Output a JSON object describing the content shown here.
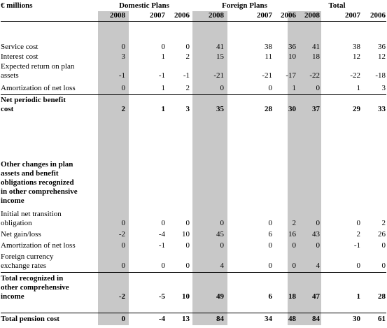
{
  "unit_label": "€ millions",
  "groups": [
    "Domestic Plans",
    "Foreign Plans",
    "Total"
  ],
  "years": [
    "2008",
    "2007",
    "2006",
    "2008",
    "2007",
    "2006",
    "2008",
    "2007",
    "2006"
  ],
  "section1": {
    "rows": [
      {
        "label": [
          "Service cost"
        ],
        "values": [
          "0",
          "0",
          "0",
          "41",
          "38",
          "36",
          "41",
          "38",
          "36"
        ]
      },
      {
        "label": [
          "Interest cost"
        ],
        "values": [
          "3",
          "1",
          "2",
          "15",
          "11",
          "10",
          "18",
          "12",
          "12"
        ]
      },
      {
        "label": [
          "Expected return on plan",
          "assets"
        ],
        "values": [
          "-1",
          "-1",
          "-1",
          "-21",
          "-21",
          "-17",
          "-22",
          "-22",
          "-18"
        ]
      },
      {
        "label": [
          "Amortization of net loss"
        ],
        "values": [
          "0",
          "1",
          "2",
          "0",
          "0",
          "1",
          "0",
          "1",
          "3"
        ]
      }
    ],
    "total": {
      "label": [
        "Net periodic benefit",
        "cost"
      ],
      "values": [
        "2",
        "1",
        "3",
        "35",
        "28",
        "30",
        "37",
        "29",
        "33"
      ]
    }
  },
  "section2": {
    "heading": [
      "Other changes in plan",
      "assets and benefit",
      "obligations recognized",
      "in other comprehensive",
      "income"
    ],
    "rows": [
      {
        "label": [
          "Initial net transition",
          "obligation"
        ],
        "values": [
          "0",
          "0",
          "0",
          "0",
          "0",
          "2",
          "0",
          "0",
          "2"
        ]
      },
      {
        "label": [
          "Net gain/loss"
        ],
        "values": [
          "-2",
          "-4",
          "10",
          "45",
          "6",
          "16",
          "43",
          "2",
          "26"
        ]
      },
      {
        "label": [
          "Amortization of net loss"
        ],
        "values": [
          "0",
          "-1",
          "0",
          "0",
          "0",
          "0",
          "0",
          "-1",
          "0"
        ]
      },
      {
        "label": [
          "Foreign currency",
          "exchange rates"
        ],
        "values": [
          "0",
          "0",
          "0",
          "4",
          "0",
          "0",
          "4",
          "0",
          "0"
        ]
      }
    ],
    "total": {
      "label": [
        "Total recognized in",
        "other comprehensive",
        "income"
      ],
      "values": [
        "-2",
        "-5",
        "10",
        "49",
        "6",
        "18",
        "47",
        "1",
        "28"
      ]
    }
  },
  "grand_total": {
    "label": [
      "Total pension cost"
    ],
    "values": [
      "0",
      "-4",
      "13",
      "84",
      "34",
      "48",
      "84",
      "30",
      "61"
    ]
  },
  "colors": {
    "shade": "#c8c8c8",
    "text": "#000000"
  }
}
